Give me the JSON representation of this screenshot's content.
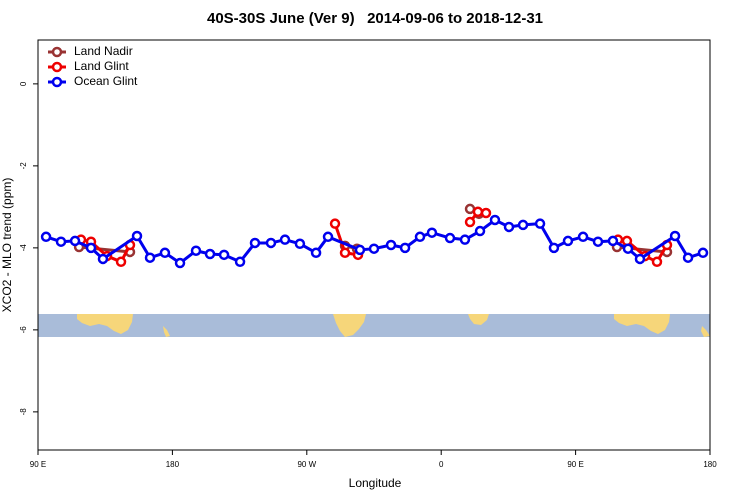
{
  "chart_data": {
    "type": "line",
    "title": "40S-30S June (Ver 9)   2014-09-06 to 2018-12-31",
    "x_label": "Longitude",
    "y_label": "XCO2 - MLO trend (ppm)",
    "xlim": [
      90,
      540
    ],
    "xticks": [
      {
        "value": 90,
        "label": "90 E"
      },
      {
        "value": 180,
        "label": "180"
      },
      {
        "value": 270,
        "label": "90 W"
      },
      {
        "value": 360,
        "label": "0"
      },
      {
        "value": 450,
        "label": "90 E"
      },
      {
        "value": 540,
        "label": "180"
      }
    ],
    "ylim": [
      -8.93,
      1.07
    ],
    "yticks": [
      0,
      -2,
      -4,
      -6,
      -8
    ],
    "legend": "top-left",
    "series": [
      {
        "name": "Land Nadir",
        "color": "#993333",
        "x": [
          117.5,
          151.6,
          null,
          295.6,
          303.6,
          null,
          379.3,
          385.3,
          null,
          477.7,
          511.2
        ],
        "values": [
          -3.98,
          -4.1,
          null,
          -3.95,
          -4.02,
          null,
          -3.05,
          -3.17,
          null,
          -3.98,
          -4.1
        ]
      },
      {
        "name": "Land Glint",
        "color": "#ee0000",
        "x": [
          118.8,
          125.5,
          136.2,
          145.6,
          151.6,
          null,
          288.9,
          295.6,
          304.3,
          null,
          379.3,
          384.6,
          390.0,
          null,
          478.4,
          484.4,
          496.5,
          504.5,
          511.2
        ],
        "values": [
          -3.8,
          -3.85,
          -4.2,
          -4.34,
          -3.93,
          null,
          -3.41,
          -4.12,
          -4.17,
          null,
          -3.37,
          -3.12,
          -3.15,
          null,
          -3.8,
          -3.83,
          -4.2,
          -4.34,
          -3.93
        ]
      },
      {
        "name": "Ocean Glint",
        "color": "#0000ee",
        "x": [
          95.4,
          105.4,
          114.8,
          125.5,
          133.5,
          156.3,
          165.0,
          175.0,
          185.1,
          195.8,
          205.2,
          214.6,
          225.3,
          235.3,
          246.0,
          255.4,
          265.4,
          276.2,
          284.2,
          305.6,
          315.0,
          326.4,
          335.8,
          345.8,
          353.8,
          365.9,
          375.9,
          386.0,
          396.0,
          405.4,
          414.8,
          426.2,
          435.5,
          444.9,
          455.0,
          465.0,
          475.0,
          485.1,
          493.1,
          516.6,
          525.3,
          535.3
        ],
        "values": [
          -3.73,
          -3.85,
          -3.83,
          -4.0,
          -4.27,
          -3.71,
          -4.24,
          -4.12,
          -4.37,
          -4.07,
          -4.15,
          -4.17,
          -4.34,
          -3.88,
          -3.88,
          -3.8,
          -3.9,
          -4.12,
          -3.73,
          -4.05,
          -4.02,
          -3.93,
          -4.0,
          -3.73,
          -3.63,
          -3.76,
          -3.8,
          -3.59,
          -3.32,
          -3.49,
          -3.44,
          -3.41,
          -4.0,
          -3.83,
          -3.73,
          -3.85,
          -3.83,
          -4.02,
          -4.27,
          -3.71,
          -4.24,
          -4.12
        ]
      }
    ]
  }
}
